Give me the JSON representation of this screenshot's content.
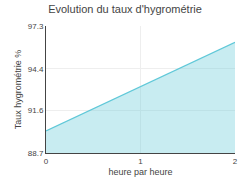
{
  "chart_data": {
    "type": "area",
    "title": "Evolution du taux d'hygrométrie",
    "xlabel": "heure par heure",
    "ylabel": "Taux hygrométrie %",
    "x": [
      0,
      2
    ],
    "values": [
      90.2,
      96.2
    ],
    "color": "#60c8d8",
    "xlim": [
      0,
      2
    ],
    "xticks": [
      0,
      1,
      2
    ],
    "ylim": [
      88.7,
      97.3
    ],
    "yticks": [
      88.7,
      91.6,
      94.4,
      97.3
    ],
    "grid": true
  }
}
